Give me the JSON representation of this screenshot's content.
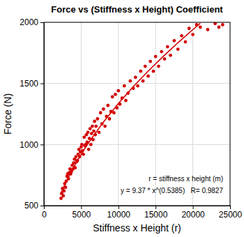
{
  "chart_data": {
    "type": "scatter",
    "title": "Force vs (Stiffness x Height) Coefficient",
    "x_label": "Stiffness x Height (r)",
    "y_label": "Force (N)",
    "annotations": [
      "r = stiffness x height (m)",
      "y = 9.37 * x^(0.5385)   R= 0.9827"
    ],
    "xlim": [
      0,
      25000
    ],
    "xticks": [
      0,
      5000,
      10000,
      15000,
      20000,
      25000
    ],
    "ylim": [
      500,
      2000
    ],
    "yticks": [
      500,
      1000,
      1500,
      2000
    ],
    "grid": true,
    "series": [
      {
        "type": "scatter",
        "color": "#d40000",
        "marker": "circle",
        "x": [
          2300,
          2400,
          2500,
          2600,
          2700,
          2800,
          2900,
          3000,
          3100,
          3200,
          3300,
          3400,
          3500,
          3600,
          3700,
          3800,
          3900,
          4000,
          4100,
          4200,
          4300,
          4400,
          4500,
          4600,
          4700,
          4800,
          4900,
          5000,
          5100,
          5200,
          5300,
          5400,
          5500,
          5600,
          5700,
          5800,
          5900,
          6000,
          6100,
          6200,
          6300,
          6400,
          6500,
          6600,
          6700,
          6800,
          6900,
          7000,
          7200,
          7400,
          7600,
          7800,
          8000,
          8200,
          8400,
          8600,
          8800,
          9000,
          9200,
          9400,
          9600,
          9800,
          10000,
          10200,
          10500,
          10800,
          11000,
          11300,
          11600,
          12000,
          12300,
          12600,
          13000,
          13300,
          13600,
          14000,
          14300,
          14700,
          15000,
          15400,
          15800,
          16200,
          16600,
          17000,
          17500,
          18000,
          18500,
          19000,
          19500,
          20000,
          20500,
          21000,
          22000,
          23000,
          23500,
          24000
        ],
        "values": [
          560,
          600,
          640,
          580,
          620,
          680,
          650,
          700,
          740,
          760,
          720,
          770,
          800,
          760,
          780,
          830,
          800,
          850,
          880,
          810,
          900,
          860,
          870,
          920,
          960,
          900,
          940,
          980,
          1000,
          950,
          920,
          1060,
          990,
          1000,
          1080,
          1020,
          1100,
          960,
          1050,
          1130,
          1000,
          1090,
          1150,
          1040,
          1110,
          1190,
          1080,
          1150,
          1210,
          1100,
          1260,
          1170,
          1290,
          1150,
          1230,
          1320,
          1210,
          1270,
          1390,
          1260,
          1410,
          1300,
          1440,
          1330,
          1380,
          1480,
          1360,
          1420,
          1520,
          1460,
          1550,
          1480,
          1600,
          1520,
          1640,
          1560,
          1680,
          1600,
          1720,
          1640,
          1760,
          1700,
          1800,
          1730,
          1850,
          1780,
          1890,
          1840,
          1950,
          1900,
          1980,
          1960,
          1940,
          1990,
          1960,
          1980
        ]
      },
      {
        "type": "line",
        "color": "#d40000",
        "line_style": "solid",
        "x": [
          2200,
          3000,
          4000,
          5000,
          6000,
          8000,
          10000,
          12000,
          14000,
          16000,
          18000,
          20000,
          21000
        ],
        "values": [
          591,
          698,
          815,
          920,
          1015,
          1185,
          1336,
          1474,
          1601,
          1720,
          1833,
          1940,
          1992
        ]
      }
    ]
  }
}
